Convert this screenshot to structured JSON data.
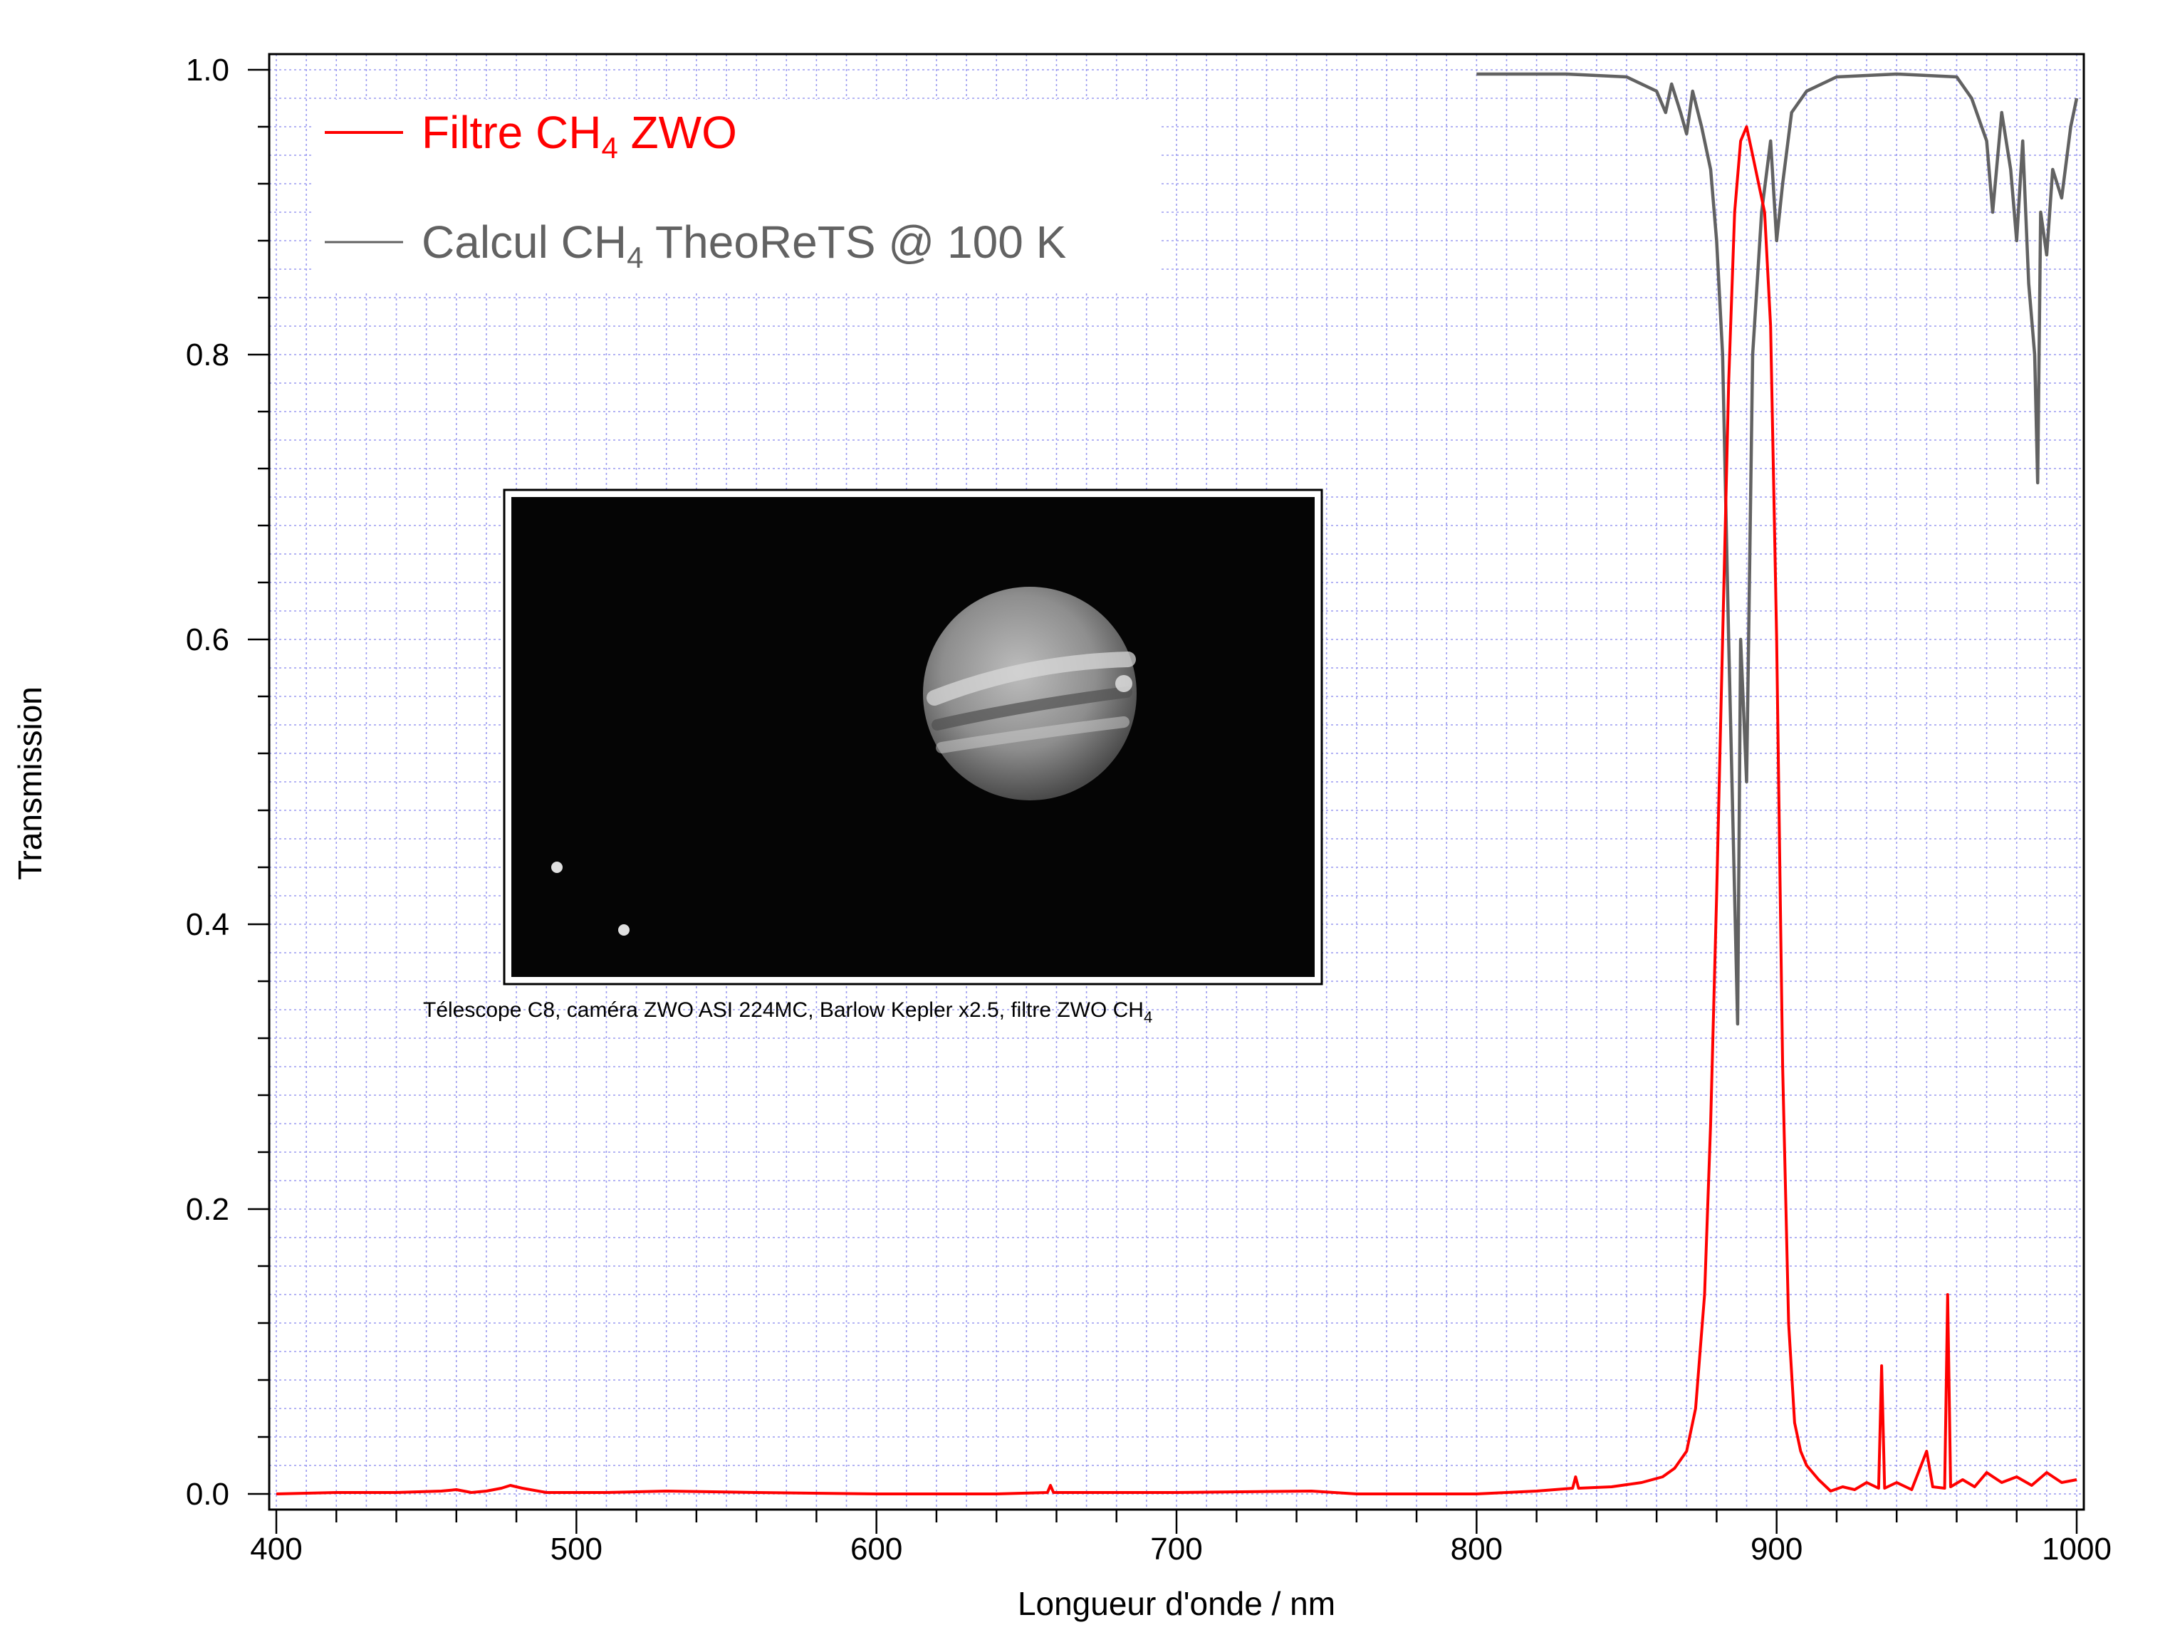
{
  "chart_data": {
    "type": "line",
    "xlabel": "Longueur d'onde / nm",
    "ylabel": "Transmission",
    "xlim": [
      400,
      1000
    ],
    "ylim": [
      0.0,
      1.0
    ],
    "x_ticks": [
      400,
      500,
      600,
      700,
      800,
      900,
      1000
    ],
    "x_tick_labels": [
      "400",
      "500",
      "600",
      "700",
      "800",
      "900",
      "1000"
    ],
    "y_ticks": [
      0.0,
      0.2,
      0.4,
      0.6,
      0.8,
      1.0
    ],
    "y_tick_labels": [
      "0.0",
      "0.2",
      "0.4",
      "0.6",
      "0.8",
      "1.0"
    ],
    "grid": true,
    "grid_style": "dotted minor grid",
    "legend_position": "top-left",
    "legend": [
      {
        "series": 0,
        "base": "Filtre CH",
        "sub": "4",
        "tail": " ZWO",
        "color": "#ff0000"
      },
      {
        "series": 1,
        "base": "Calcul CH",
        "sub": "4",
        "tail": " TheoReTS @ 100 K",
        "color": "#626262"
      }
    ],
    "series": [
      {
        "label_ref": "legend.0",
        "color": "#ff0000",
        "points": [
          [
            400,
            0.0
          ],
          [
            420,
            0.001
          ],
          [
            440,
            0.001
          ],
          [
            455,
            0.002
          ],
          [
            460,
            0.003
          ],
          [
            465,
            0.001
          ],
          [
            470,
            0.002
          ],
          [
            475,
            0.004
          ],
          [
            478,
            0.006
          ],
          [
            482,
            0.004
          ],
          [
            490,
            0.001
          ],
          [
            510,
            0.001
          ],
          [
            530,
            0.002
          ],
          [
            560,
            0.001
          ],
          [
            600,
            0.0
          ],
          [
            640,
            0.0
          ],
          [
            657,
            0.001
          ],
          [
            658,
            0.006
          ],
          [
            659,
            0.001
          ],
          [
            700,
            0.001
          ],
          [
            745,
            0.002
          ],
          [
            760,
            0.0
          ],
          [
            800,
            0.0
          ],
          [
            820,
            0.002
          ],
          [
            832,
            0.004
          ],
          [
            833,
            0.012
          ],
          [
            834,
            0.004
          ],
          [
            845,
            0.005
          ],
          [
            855,
            0.008
          ],
          [
            862,
            0.012
          ],
          [
            866,
            0.018
          ],
          [
            870,
            0.03
          ],
          [
            873,
            0.06
          ],
          [
            876,
            0.14
          ],
          [
            878,
            0.26
          ],
          [
            880,
            0.42
          ],
          [
            882,
            0.6
          ],
          [
            884,
            0.78
          ],
          [
            886,
            0.9
          ],
          [
            888,
            0.95
          ],
          [
            890,
            0.96
          ],
          [
            892,
            0.94
          ],
          [
            894,
            0.92
          ],
          [
            896,
            0.9
          ],
          [
            898,
            0.82
          ],
          [
            900,
            0.6
          ],
          [
            902,
            0.3
          ],
          [
            904,
            0.12
          ],
          [
            906,
            0.05
          ],
          [
            908,
            0.03
          ],
          [
            910,
            0.02
          ],
          [
            914,
            0.01
          ],
          [
            918,
            0.002
          ],
          [
            922,
            0.005
          ],
          [
            926,
            0.003
          ],
          [
            930,
            0.008
          ],
          [
            934,
            0.004
          ],
          [
            935,
            0.09
          ],
          [
            936,
            0.004
          ],
          [
            940,
            0.008
          ],
          [
            945,
            0.003
          ],
          [
            950,
            0.03
          ],
          [
            952,
            0.005
          ],
          [
            956,
            0.004
          ],
          [
            957,
            0.14
          ],
          [
            958,
            0.005
          ],
          [
            962,
            0.01
          ],
          [
            966,
            0.005
          ],
          [
            970,
            0.015
          ],
          [
            975,
            0.008
          ],
          [
            980,
            0.012
          ],
          [
            985,
            0.006
          ],
          [
            990,
            0.015
          ],
          [
            995,
            0.008
          ],
          [
            1000,
            0.01
          ]
        ]
      },
      {
        "label_ref": "legend.1",
        "color": "#626262",
        "points": [
          [
            800,
            0.997
          ],
          [
            830,
            0.997
          ],
          [
            850,
            0.995
          ],
          [
            860,
            0.985
          ],
          [
            863,
            0.97
          ],
          [
            865,
            0.99
          ],
          [
            868,
            0.97
          ],
          [
            870,
            0.955
          ],
          [
            872,
            0.985
          ],
          [
            875,
            0.96
          ],
          [
            878,
            0.93
          ],
          [
            880,
            0.88
          ],
          [
            882,
            0.8
          ],
          [
            884,
            0.6
          ],
          [
            886,
            0.42
          ],
          [
            887,
            0.33
          ],
          [
            888,
            0.6
          ],
          [
            890,
            0.5
          ],
          [
            892,
            0.8
          ],
          [
            895,
            0.9
          ],
          [
            898,
            0.95
          ],
          [
            900,
            0.88
          ],
          [
            902,
            0.92
          ],
          [
            905,
            0.97
          ],
          [
            910,
            0.985
          ],
          [
            920,
            0.995
          ],
          [
            940,
            0.997
          ],
          [
            960,
            0.995
          ],
          [
            965,
            0.98
          ],
          [
            970,
            0.95
          ],
          [
            972,
            0.9
          ],
          [
            975,
            0.97
          ],
          [
            978,
            0.93
          ],
          [
            980,
            0.88
          ],
          [
            982,
            0.95
          ],
          [
            984,
            0.85
          ],
          [
            986,
            0.8
          ],
          [
            987,
            0.71
          ],
          [
            988,
            0.9
          ],
          [
            990,
            0.87
          ],
          [
            992,
            0.93
          ],
          [
            995,
            0.91
          ],
          [
            998,
            0.96
          ],
          [
            1000,
            0.98
          ]
        ]
      }
    ],
    "inset": {
      "image_caption": {
        "base": "Télescope C8, caméra ZWO ASI 224MC, Barlow Kepler x2.5, filtre ZWO CH",
        "sub": "4"
      }
    }
  }
}
